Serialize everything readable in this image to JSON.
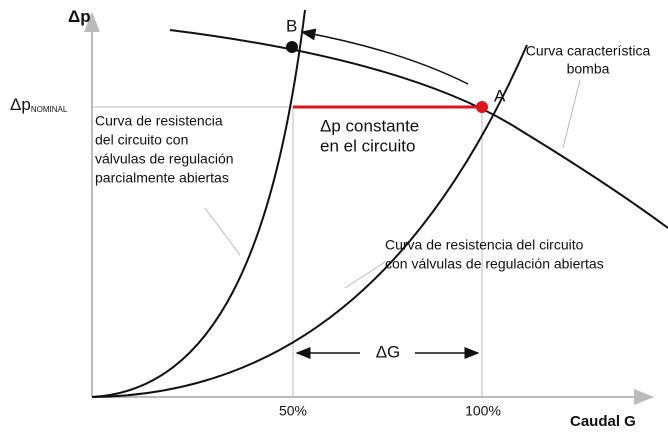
{
  "axes": {
    "y_label": "Δp",
    "x_label": "Caudal G",
    "y_nominal": "Δp",
    "y_nominal_sub": "NOMINAL",
    "x_ticks": [
      "50%",
      "100%"
    ]
  },
  "points": {
    "a": "A",
    "b": "B"
  },
  "labels": {
    "pump": [
      "Curva característica",
      "bomba"
    ],
    "partial": [
      "Curva de resistencia",
      "del circuito con",
      "válvulas de regulación",
      "parcialmente abiertas"
    ],
    "constant": [
      "Δp constante",
      "en el circuito"
    ],
    "open": [
      "Curva de resistencia del circuito",
      "con válvulas de regulación abiertas"
    ],
    "delta_g": "ΔG"
  }
}
